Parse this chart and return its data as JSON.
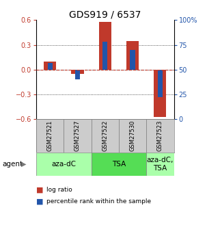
{
  "title": "GDS919 / 6537",
  "samples": [
    "GSM27521",
    "GSM27527",
    "GSM27522",
    "GSM27530",
    "GSM27523"
  ],
  "log_ratio": [
    0.1,
    -0.05,
    0.58,
    0.35,
    -0.57
  ],
  "pct_rank": [
    0.57,
    0.4,
    0.78,
    0.7,
    0.22
  ],
  "ylim": [
    -0.6,
    0.6
  ],
  "y2lim": [
    0,
    100
  ],
  "y_ticks": [
    -0.6,
    -0.3,
    0.0,
    0.3,
    0.6
  ],
  "y2_ticks": [
    0,
    25,
    50,
    75,
    100
  ],
  "bar_color_red": "#c0392b",
  "bar_color_blue": "#2255aa",
  "grid_color": "#222222",
  "agent_groups": [
    {
      "label": "aza-dC",
      "span": [
        0,
        2
      ],
      "color": "#aaffaa"
    },
    {
      "label": "TSA",
      "span": [
        2,
        4
      ],
      "color": "#55dd55"
    },
    {
      "label": "aza-dC,\nTSA",
      "span": [
        4,
        5
      ],
      "color": "#aaffaa"
    }
  ],
  "bar_width": 0.45,
  "blue_bar_width": 0.18,
  "title_fontsize": 10,
  "tick_fontsize": 7,
  "sample_label_fontsize": 6,
  "agent_label_fontsize": 7,
  "legend_fontsize": 6.5,
  "agent_text_fontsize": 7.5
}
